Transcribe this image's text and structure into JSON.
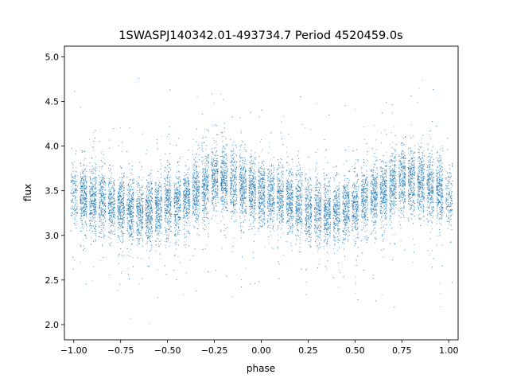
{
  "chart_data": {
    "type": "scatter",
    "title": "1SWASPJ140342.01-493734.7 Period 4520459.0s",
    "xlabel": "phase",
    "ylabel": "flux",
    "xlim": [
      -1.05,
      1.05
    ],
    "ylim": [
      1.83,
      5.12
    ],
    "x_ticks": [
      {
        "value": -1.0,
        "label": "−1.00"
      },
      {
        "value": -0.75,
        "label": "−0.75"
      },
      {
        "value": -0.5,
        "label": "−0.50"
      },
      {
        "value": -0.25,
        "label": "−0.25"
      },
      {
        "value": 0.0,
        "label": "0.00"
      },
      {
        "value": 0.25,
        "label": "0.25"
      },
      {
        "value": 0.5,
        "label": "0.50"
      },
      {
        "value": 0.75,
        "label": "0.75"
      },
      {
        "value": 1.0,
        "label": "1.00"
      }
    ],
    "y_ticks": [
      {
        "value": 2.0,
        "label": "2.0"
      },
      {
        "value": 2.5,
        "label": "2.5"
      },
      {
        "value": 3.0,
        "label": "3.0"
      },
      {
        "value": 3.5,
        "label": "3.5"
      },
      {
        "value": 4.0,
        "label": "4.0"
      },
      {
        "value": 4.5,
        "label": "4.5"
      },
      {
        "value": 5.0,
        "label": "5.0"
      }
    ],
    "grid": false,
    "marker_color": "#1f77b4",
    "series": [
      {
        "x_range": [
          -1.0,
          1.0
        ],
        "points_per_unit_phase": 9000,
        "mean_flux_curve": {
          "phase": [
            0.0,
            0.1,
            0.2,
            0.3,
            0.4,
            0.5,
            0.6,
            0.7,
            0.75,
            0.8,
            0.9,
            1.0
          ],
          "flux": [
            3.45,
            3.42,
            3.35,
            3.28,
            3.27,
            3.33,
            3.42,
            3.55,
            3.65,
            3.62,
            3.55,
            3.45
          ]
        },
        "scatter_std": 0.18,
        "flux_envelope": [
          1.98,
          4.95
        ]
      }
    ]
  }
}
